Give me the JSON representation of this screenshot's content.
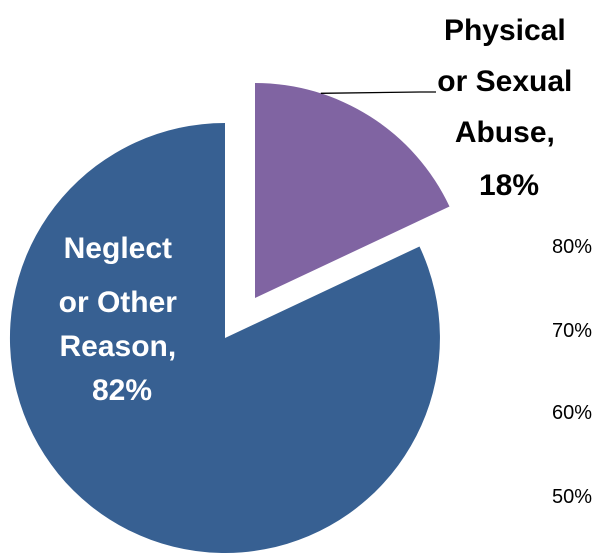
{
  "chart_data": {
    "type": "pie",
    "slices": [
      {
        "name": "Neglect or Other Reason",
        "value": 82,
        "color": "#376092",
        "label_lines": [
          "Neglect",
          "or Other",
          "Reason,",
          "82%"
        ],
        "label_color": "#ffffff"
      },
      {
        "name": "Physical or Sexual Abuse",
        "value": 18,
        "color": "#8064a2",
        "label_lines": [
          "Physical",
          "or Sexual",
          "Abuse,",
          "18%"
        ],
        "label_color": "#000000",
        "exploded": true
      }
    ],
    "background_axis_ticks": [
      "80%",
      "70%",
      "60%",
      "50%"
    ]
  }
}
